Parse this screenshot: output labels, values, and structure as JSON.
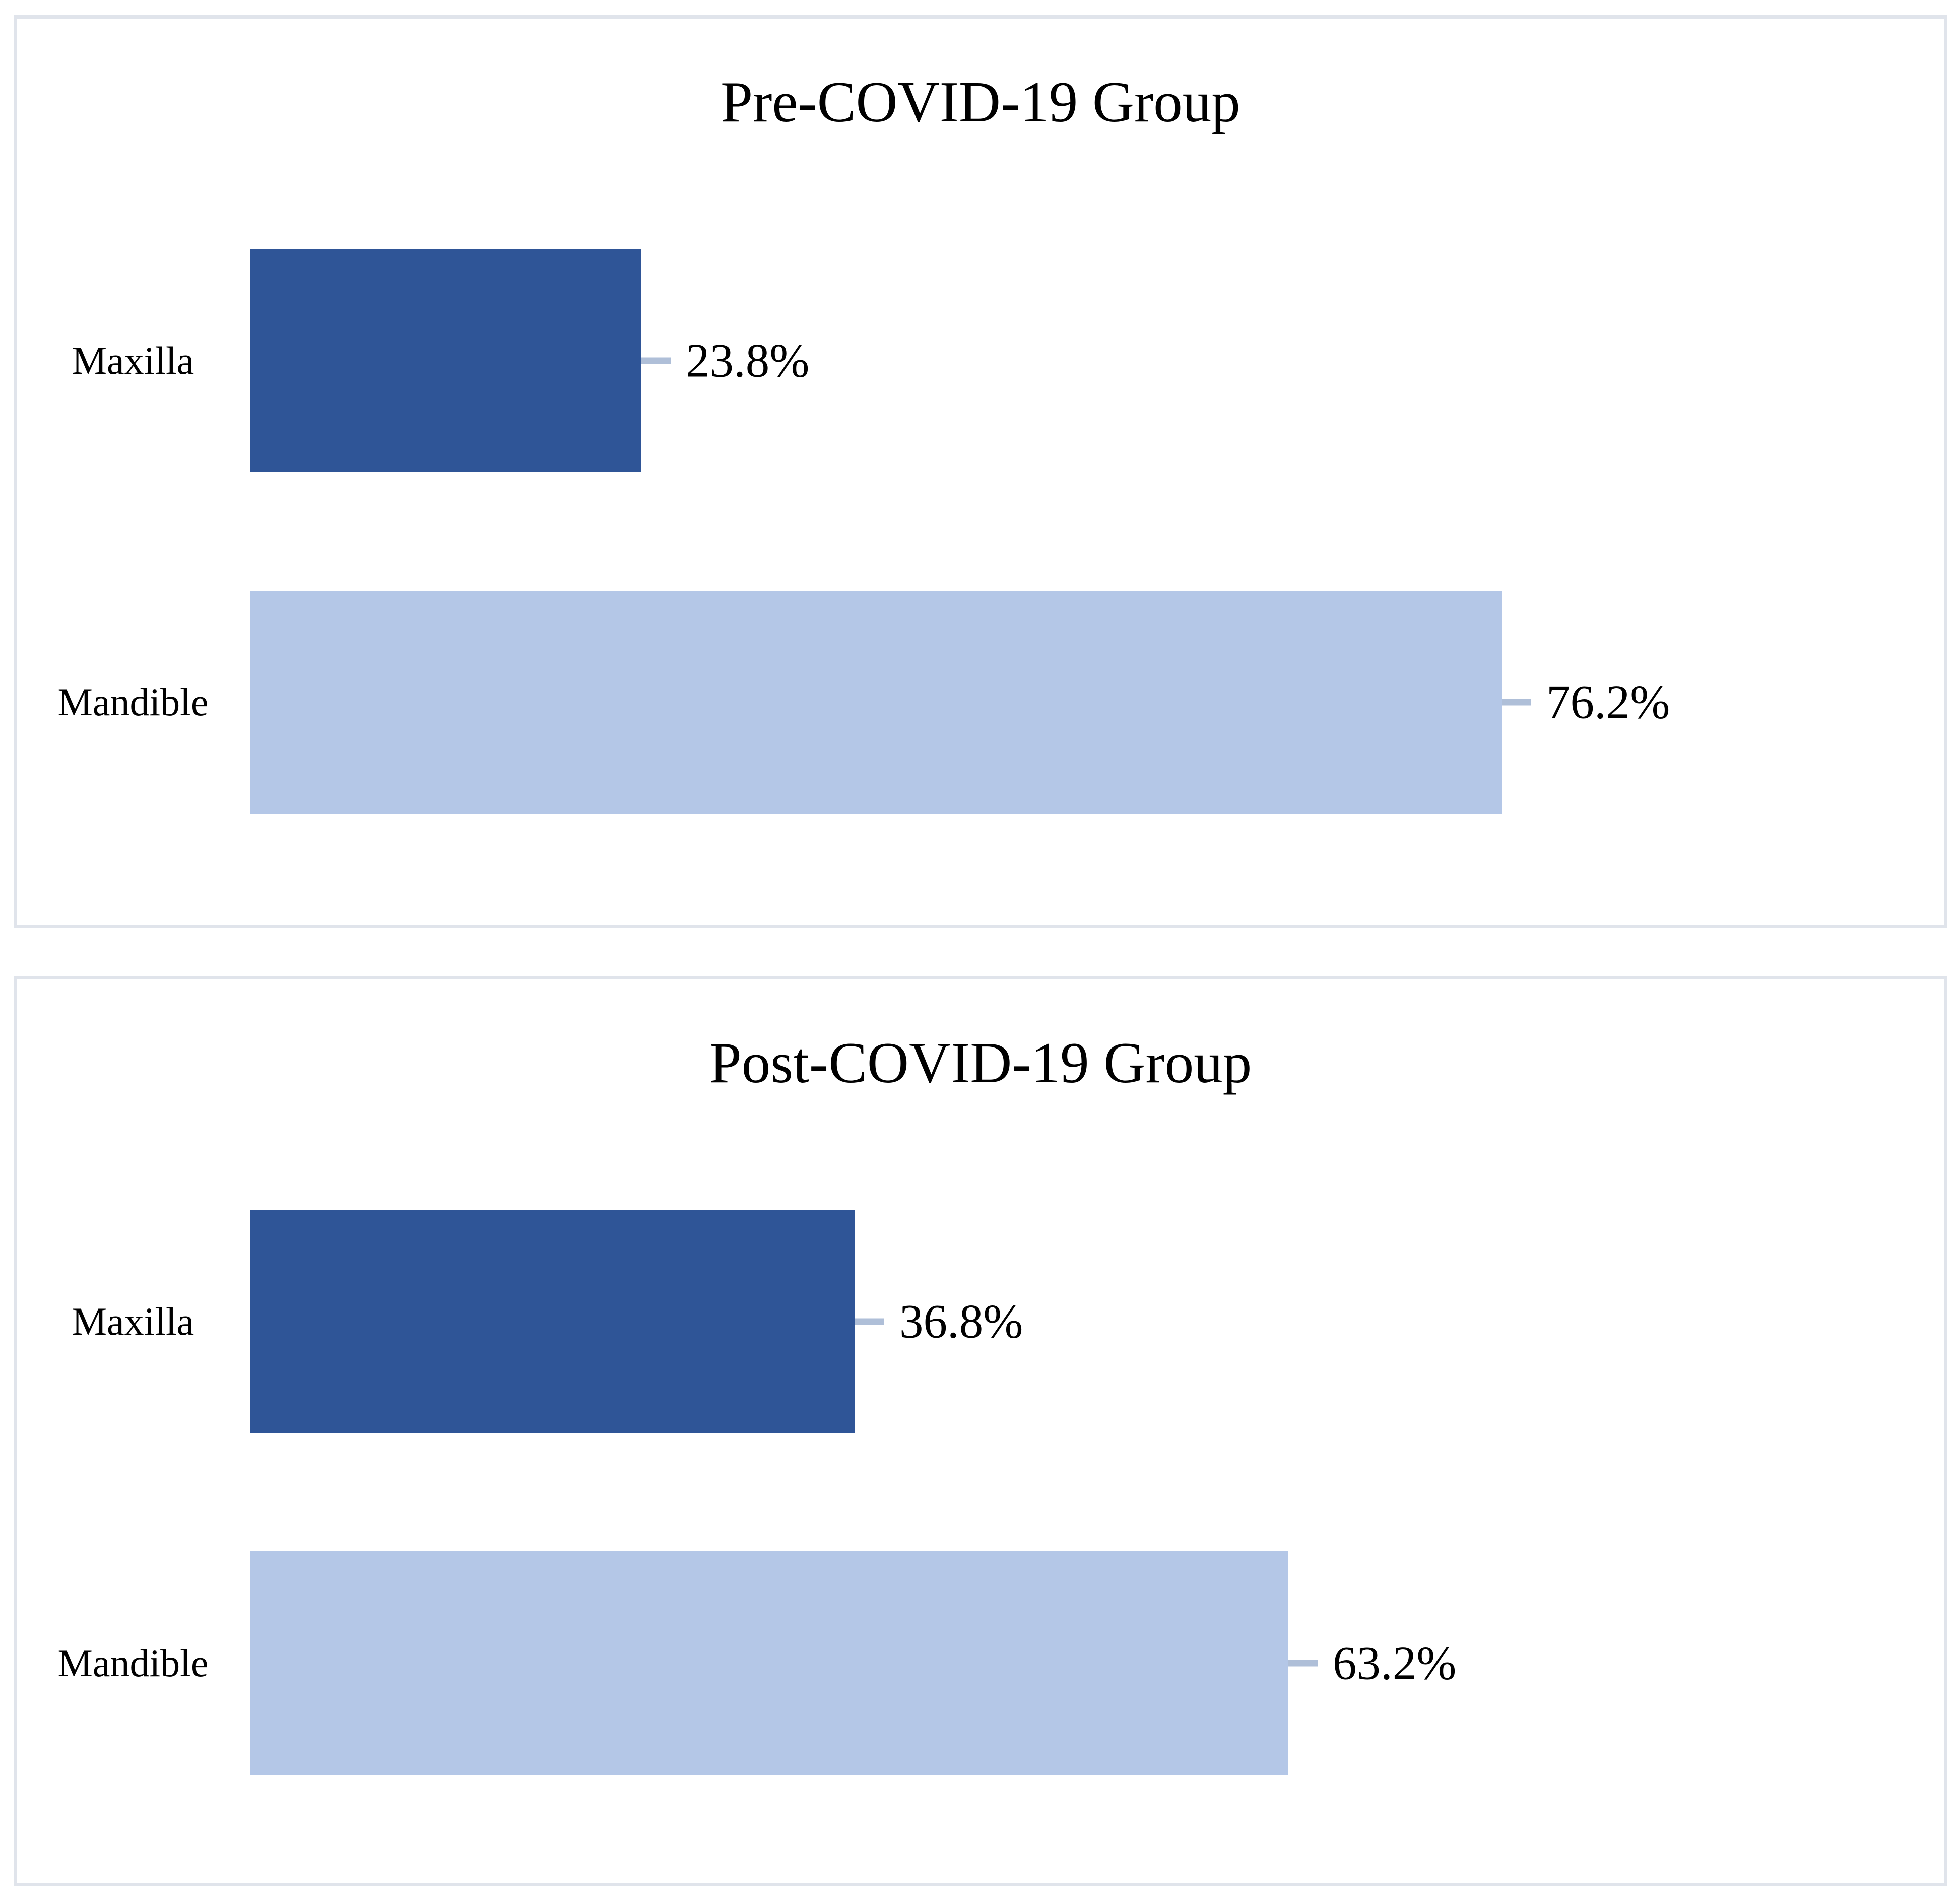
{
  "page": {
    "background_color": "#ffffff",
    "text_color": "#000000"
  },
  "styles": {
    "panel_border_color": "#e0e4eb",
    "leader_line_color": "#afbfd8",
    "bar_color_dark": "#2f5597",
    "bar_color_light": "#b4c7e7"
  },
  "chart_data": [
    {
      "type": "bar",
      "orientation": "horizontal",
      "title": "Pre-COVID-19 Group",
      "categories": [
        "Maxilla",
        "Mandible"
      ],
      "values": [
        23.8,
        76.2
      ],
      "value_labels": [
        "23.8%",
        "76.2%"
      ],
      "bar_colors": [
        "#2f5597",
        "#b4c7e7"
      ],
      "xlim": [
        0,
        100
      ],
      "grid": false,
      "legend": false,
      "data_labels": "outside-end-with-leader-line"
    },
    {
      "type": "bar",
      "orientation": "horizontal",
      "title": "Post-COVID-19 Group",
      "categories": [
        "Maxilla",
        "Mandible"
      ],
      "values": [
        36.8,
        63.2
      ],
      "value_labels": [
        "36.8%",
        "63.2%"
      ],
      "bar_colors": [
        "#2f5597",
        "#b4c7e7"
      ],
      "xlim": [
        0,
        100
      ],
      "grid": false,
      "legend": false,
      "data_labels": "outside-end-with-leader-line"
    }
  ]
}
